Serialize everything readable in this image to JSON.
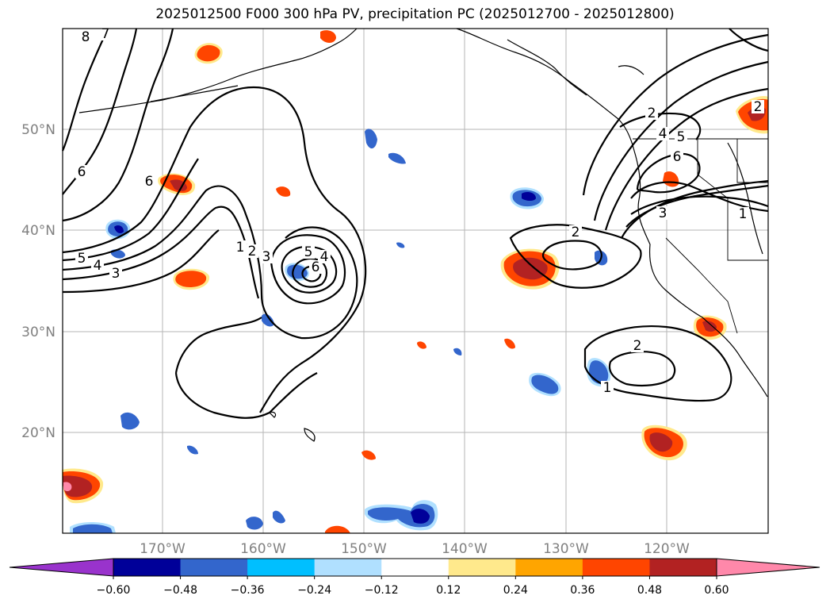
{
  "title": "2025012500 F000 300 hPa PV, precipitation PC (2025012700 - 2025012800)",
  "lat_labels": [
    "50°N",
    "40°N",
    "30°N",
    "20°N"
  ],
  "lon_labels": [
    "170°W",
    "160°W",
    "150°W",
    "140°W",
    "130°W",
    "120°W"
  ],
  "colorbar": {
    "ticks": [
      "−0.60",
      "−0.48",
      "−0.36",
      "−0.24",
      "−0.12",
      "0.12",
      "0.24",
      "0.36",
      "0.48",
      "0.60"
    ],
    "colors": [
      "#9933cc",
      "#000099",
      "#3366cc",
      "#00bfff",
      "#b0e0ff",
      "#ffffff",
      "#ffe98c",
      "#ffa500",
      "#ff4500",
      "#b22222",
      "#ff88aa"
    ]
  },
  "contour_labels": [
    "8",
    "7",
    "6",
    "6",
    "5",
    "4",
    "3",
    "1",
    "2",
    "3",
    "5",
    "4",
    "6",
    "2",
    "2",
    "4",
    "5",
    "6",
    "3",
    "1",
    "2",
    "1",
    "2"
  ],
  "colors": {
    "pos_light": "#ffe98c",
    "pos_mid": "#ff4500",
    "pos_dark": "#b22222",
    "neg_light": "#b0e0ff",
    "neg_mid": "#3366cc",
    "neg_dark": "#000099"
  }
}
